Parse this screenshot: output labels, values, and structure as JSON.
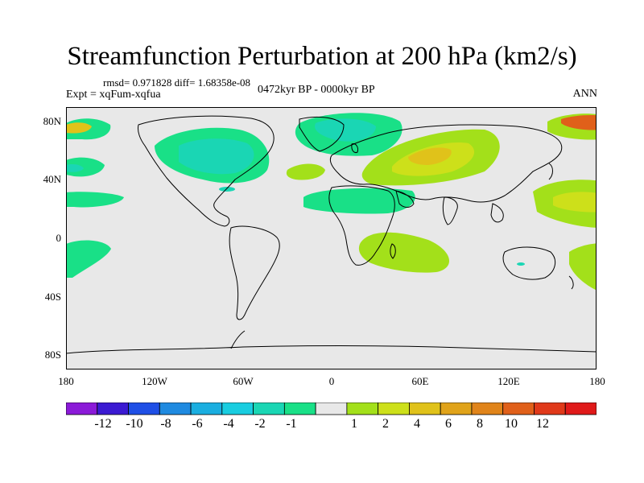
{
  "header": {
    "title": "Streamfunction Perturbation at 200 hPa (km2/s)",
    "stats": "rmsd= 0.971828 diff= 1.68358e-08",
    "experiment": "Expt = xqFum-xqfua",
    "period": "0472kyr BP - 0000kyr BP",
    "season": "ANN"
  },
  "axes": {
    "lat_labels": [
      "80N",
      "40N",
      "0",
      "40S",
      "80S"
    ],
    "lon_labels": [
      "180",
      "120W",
      "60W",
      "0",
      "60E",
      "120E",
      "180"
    ]
  },
  "colorbar": {
    "colors": [
      "#8b1ad8",
      "#3b1ad2",
      "#1f4fe6",
      "#1f8ae0",
      "#1aaee0",
      "#19cde0",
      "#1ad6b4",
      "#19e087",
      "#e8e8e8",
      "#a3e01a",
      "#cde01a",
      "#e0c21a",
      "#e0a31a",
      "#e0841a",
      "#e0601a",
      "#e0391a",
      "#e01a1a"
    ],
    "labels": [
      "-12",
      "-10",
      "-8",
      "-6",
      "-4",
      "-2",
      "-1",
      "1",
      "2",
      "4",
      "6",
      "8",
      "10",
      "12"
    ]
  }
}
